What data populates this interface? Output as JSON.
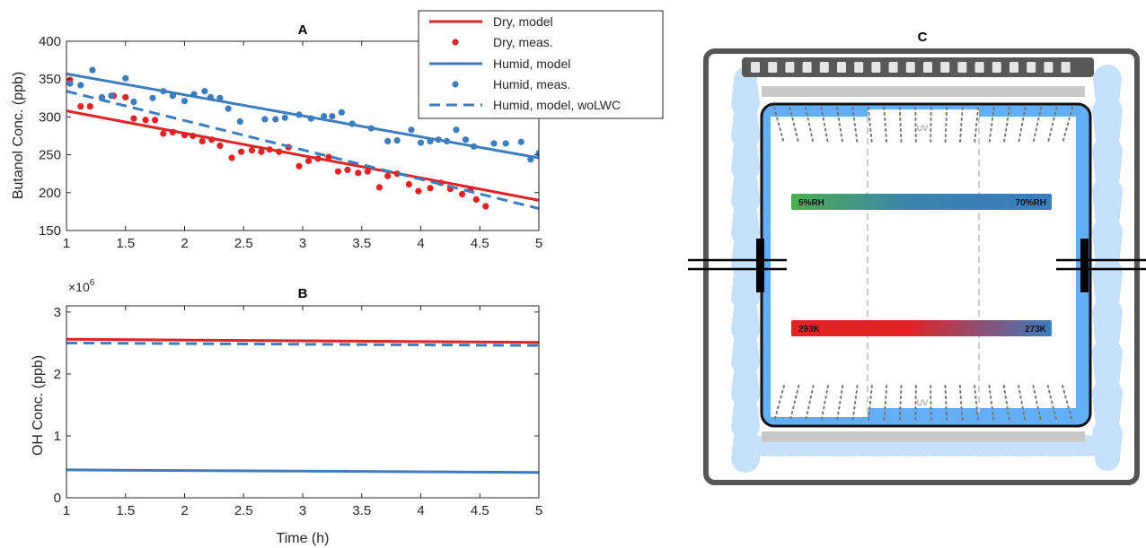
{
  "colors": {
    "dry": "#e32226",
    "humid": "#3b7dbf",
    "axis": "#262626"
  },
  "chart_data": [
    {
      "panel": "A",
      "type": "line",
      "title": "A",
      "xlabel": "",
      "ylabel": "Butanol Conc. (ppb)",
      "xlim": [
        1,
        5
      ],
      "ylim": [
        150,
        400
      ],
      "xticks": [
        "1",
        "1.5",
        "2",
        "2.5",
        "3",
        "3.5",
        "4",
        "4.5",
        "5"
      ],
      "yticks": [
        "150",
        "200",
        "250",
        "300",
        "350",
        "400"
      ],
      "grid": false,
      "legend_position": "top-right",
      "series": [
        {
          "name": "Dry, model",
          "style": "solid",
          "color": "#e32226",
          "x": [
            1,
            5
          ],
          "y": [
            308,
            190
          ]
        },
        {
          "name": "Dry, meas.",
          "style": "marker",
          "color": "#e32226",
          "x": [
            1.03,
            1.12,
            1.2,
            1.3,
            1.4,
            1.5,
            1.57,
            1.67,
            1.75,
            1.82,
            1.9,
            2.0,
            2.07,
            2.15,
            2.23,
            2.3,
            2.4,
            2.48,
            2.57,
            2.65,
            2.72,
            2.8,
            2.88,
            2.97,
            3.05,
            3.13,
            3.22,
            3.3,
            3.38,
            3.47,
            3.55,
            3.65,
            3.72,
            3.8,
            3.9,
            3.98,
            4.08,
            4.17,
            4.25,
            4.35,
            4.42,
            4.47,
            4.55
          ],
          "y": [
            349,
            314,
            314,
            325,
            328,
            326,
            298,
            296,
            296,
            278,
            280,
            276,
            275,
            268,
            270,
            262,
            246,
            254,
            256,
            254,
            257,
            254,
            260,
            235,
            242,
            245,
            247,
            228,
            230,
            226,
            228,
            207,
            222,
            225,
            211,
            202,
            206,
            213,
            205,
            198,
            204,
            191,
            182
          ]
        },
        {
          "name": "Humid, model",
          "style": "solid",
          "color": "#3b7dbf",
          "x": [
            1,
            5
          ],
          "y": [
            357,
            246
          ]
        },
        {
          "name": "Humid, meas.",
          "style": "marker",
          "color": "#3b7dbf",
          "x": [
            1.03,
            1.12,
            1.22,
            1.3,
            1.38,
            1.5,
            1.57,
            1.73,
            1.82,
            1.9,
            2.0,
            2.08,
            2.17,
            2.22,
            2.3,
            2.37,
            2.47,
            2.68,
            2.77,
            2.85,
            2.97,
            3.07,
            3.18,
            3.25,
            3.33,
            3.42,
            3.58,
            3.72,
            3.8,
            3.92,
            4.0,
            4.08,
            4.15,
            4.22,
            4.3,
            4.38,
            4.45,
            4.62,
            4.72,
            4.85,
            4.93,
            5.0
          ],
          "y": [
            344,
            342,
            362,
            326,
            328,
            351,
            320,
            325,
            334,
            328,
            321,
            330,
            334,
            326,
            325,
            311,
            294,
            297,
            297,
            299,
            303,
            298,
            301,
            301,
            306,
            291,
            285,
            268,
            269,
            283,
            266,
            268,
            270,
            268,
            283,
            270,
            261,
            265,
            265,
            267,
            244,
            252
          ]
        },
        {
          "name": "Humid, model, woLWC",
          "style": "dashed",
          "color": "#3b7dbf",
          "x": [
            1,
            5
          ],
          "y": [
            334,
            179
          ]
        }
      ]
    },
    {
      "panel": "B",
      "type": "line",
      "title": "B",
      "xlabel": "Time (h)",
      "ylabel": "OH Conc. (ppb)",
      "xlim": [
        1,
        5
      ],
      "ylim": [
        0,
        3.1
      ],
      "exponent_label": "×10",
      "exponent": "6",
      "xticks": [
        "1",
        "1.5",
        "2",
        "2.5",
        "3",
        "3.5",
        "4",
        "4.5",
        "5"
      ],
      "yticks": [
        "0",
        "1",
        "2",
        "3"
      ],
      "grid": false,
      "series": [
        {
          "style": "solid",
          "color": "#e32226",
          "x": [
            1,
            5
          ],
          "y": [
            2.56,
            2.51
          ]
        },
        {
          "style": "dashed",
          "color": "#3b7dbf",
          "x": [
            1,
            5
          ],
          "y": [
            2.5,
            2.46
          ]
        },
        {
          "style": "solid",
          "color": "#3b7dbf",
          "x": [
            1,
            5
          ],
          "y": [
            0.45,
            0.41
          ]
        }
      ]
    }
  ],
  "diagram": {
    "title": "C",
    "uv_top": "UV",
    "uv_bottom": "UV",
    "rh_left": "5%RH",
    "rh_right": "70%RH",
    "temp_left": "293K",
    "temp_right": "273K",
    "lamp_count": 19
  }
}
